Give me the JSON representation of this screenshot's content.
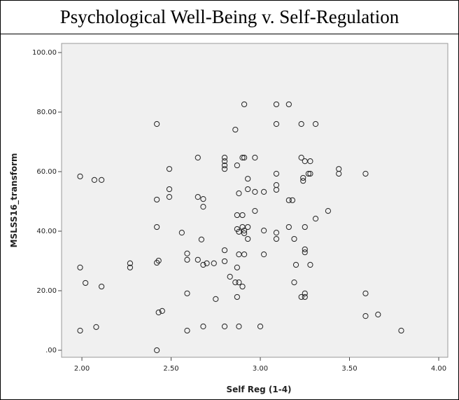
{
  "chart_data": {
    "type": "scatter",
    "title": "Psychological Well-Being v. Self-Regulation",
    "x_label": "Self Reg (1-4)",
    "y_label": "MSLSS16_transform",
    "xlim": [
      1.886,
      4.051
    ],
    "ylim": [
      -2.35,
      103.06
    ],
    "xticks": [
      {
        "value": 2,
        "label": "2.00"
      },
      {
        "value": 2.5,
        "label": "2.50"
      },
      {
        "value": 3,
        "label": "3.00"
      },
      {
        "value": 3.5,
        "label": "3.50"
      },
      {
        "value": 4,
        "label": "4.00"
      }
    ],
    "yticks": [
      {
        "value": 0,
        "label": ".00"
      },
      {
        "value": 20,
        "label": "20.00"
      },
      {
        "value": 40,
        "label": "40.00"
      },
      {
        "value": 60,
        "label": "60.00"
      },
      {
        "value": 80,
        "label": "80.00"
      },
      {
        "value": 100,
        "label": "100.00"
      }
    ],
    "color": "#222222",
    "x": [
      1.99,
      1.99,
      1.99,
      2.02,
      2.07,
      2.11,
      2.08,
      2.11,
      2.27,
      2.27,
      2.42,
      2.42,
      2.42,
      2.42,
      2.43,
      2.43,
      2.45,
      2.42,
      2.49,
      2.49,
      2.49,
      2.56,
      2.59,
      2.59,
      2.59,
      2.59,
      2.65,
      2.65,
      2.68,
      2.68,
      2.67,
      2.65,
      2.68,
      2.7,
      2.68,
      2.74,
      2.75,
      2.8,
      2.8,
      2.8,
      2.8,
      2.8,
      2.8,
      2.8,
      2.83,
      2.86,
      2.87,
      2.88,
      2.87,
      2.87,
      2.88,
      2.88,
      2.87,
      2.86,
      2.88,
      2.87,
      2.88,
      2.9,
      2.91,
      2.91,
      2.9,
      2.9,
      2.91,
      2.91,
      2.91,
      2.9,
      2.93,
      2.93,
      2.93,
      2.93,
      2.97,
      2.97,
      2.97,
      3.0,
      3.02,
      3.02,
      3.02,
      3.09,
      3.09,
      3.09,
      3.09,
      3.09,
      3.09,
      3.09,
      3.16,
      3.16,
      3.16,
      3.18,
      3.19,
      3.19,
      3.23,
      3.23,
      3.24,
      3.24,
      3.2,
      3.23,
      3.27,
      3.25,
      3.25,
      3.25,
      3.25,
      3.25,
      3.25,
      3.28,
      3.28,
      3.28,
      3.31,
      3.31,
      3.38,
      3.44,
      3.44,
      3.59,
      3.59,
      3.59,
      3.66,
      3.79
    ],
    "values": [
      58.4,
      27.8,
      6.6,
      22.6,
      57.2,
      57.2,
      7.8,
      21.4,
      29.2,
      27.8,
      76.0,
      50.6,
      41.4,
      29.4,
      30.1,
      12.7,
      13.2,
      0,
      54.1,
      51.5,
      60.9,
      39.5,
      32.5,
      30.4,
      19.1,
      6.6,
      64.7,
      51.5,
      50.8,
      48.2,
      37.2,
      30.4,
      28.7,
      29.2,
      8.0,
      29.2,
      17.2,
      64.7,
      63.5,
      62.1,
      60.9,
      33.6,
      29.9,
      8.0,
      24.7,
      74.1,
      62.1,
      52.7,
      45.4,
      40.7,
      39.8,
      32.2,
      27.8,
      22.8,
      22.8,
      17.9,
      8.0,
      64.7,
      64.7,
      82.6,
      45.4,
      41.4,
      40.2,
      39.3,
      32.2,
      21.4,
      57.6,
      54.1,
      41.4,
      37.4,
      64.7,
      53.2,
      46.8,
      8.0,
      53.2,
      40.2,
      32.2,
      82.6,
      76.0,
      59.3,
      55.5,
      53.9,
      39.5,
      37.4,
      82.6,
      50.4,
      41.4,
      50.4,
      37.4,
      22.8,
      76.0,
      64.7,
      57.9,
      56.9,
      28.7,
      17.9,
      59.3,
      63.5,
      41.4,
      33.9,
      32.9,
      19.1,
      17.9,
      59.3,
      28.7,
      63.5,
      44.2,
      76.0,
      46.8,
      60.9,
      59.3,
      59.3,
      19.1,
      11.5,
      12.0,
      6.6
    ]
  }
}
